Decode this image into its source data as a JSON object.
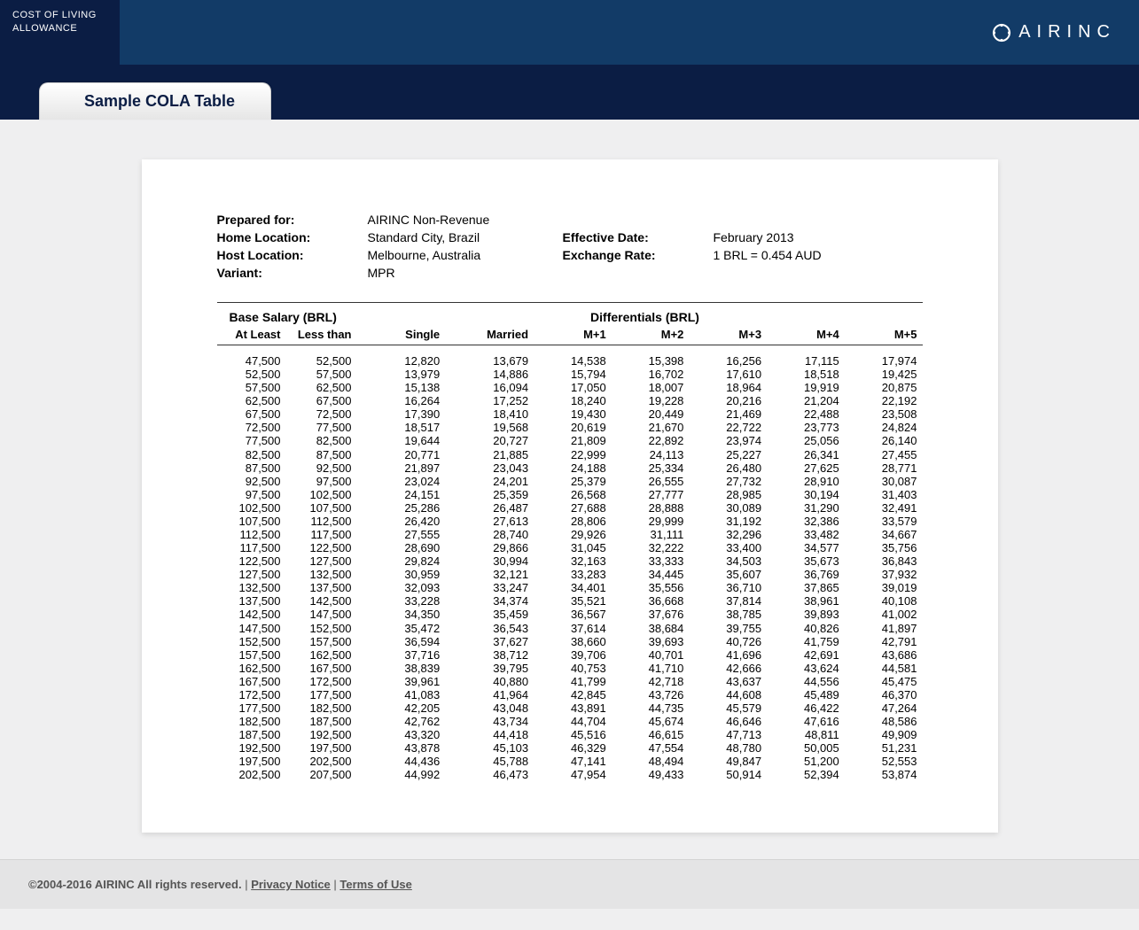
{
  "header": {
    "app_title_line1": "COST OF LIVING",
    "app_title_line2": "ALLOWANCE",
    "brand": "AIRINC"
  },
  "tab": {
    "label": "Sample COLA Table"
  },
  "meta": {
    "prepared_for_label": "Prepared for:",
    "prepared_for_value": "AIRINC Non-Revenue",
    "home_location_label": "Home Location:",
    "home_location_value": "Standard City, Brazil",
    "host_location_label": "Host Location:",
    "host_location_value": "Melbourne, Australia",
    "variant_label": "Variant:",
    "variant_value": "MPR",
    "effective_date_label": "Effective Date:",
    "effective_date_value": "February 2013",
    "exchange_rate_label": "Exchange Rate:",
    "exchange_rate_value": "1 BRL = 0.454 AUD"
  },
  "section_headers": {
    "base_salary": "Base Salary (BRL)",
    "differentials": "Differentials (BRL)"
  },
  "table": {
    "columns": [
      "At Least",
      "Less than",
      "Single",
      "Married",
      "M+1",
      "M+2",
      "M+3",
      "M+4",
      "M+5"
    ],
    "rows": [
      [
        "47,500",
        "52,500",
        "12,820",
        "13,679",
        "14,538",
        "15,398",
        "16,256",
        "17,115",
        "17,974"
      ],
      [
        "52,500",
        "57,500",
        "13,979",
        "14,886",
        "15,794",
        "16,702",
        "17,610",
        "18,518",
        "19,425"
      ],
      [
        "57,500",
        "62,500",
        "15,138",
        "16,094",
        "17,050",
        "18,007",
        "18,964",
        "19,919",
        "20,875"
      ],
      [
        "62,500",
        "67,500",
        "16,264",
        "17,252",
        "18,240",
        "19,228",
        "20,216",
        "21,204",
        "22,192"
      ],
      [
        "67,500",
        "72,500",
        "17,390",
        "18,410",
        "19,430",
        "20,449",
        "21,469",
        "22,488",
        "23,508"
      ],
      [
        "72,500",
        "77,500",
        "18,517",
        "19,568",
        "20,619",
        "21,670",
        "22,722",
        "23,773",
        "24,824"
      ],
      [
        "77,500",
        "82,500",
        "19,644",
        "20,727",
        "21,809",
        "22,892",
        "23,974",
        "25,056",
        "26,140"
      ],
      [
        "82,500",
        "87,500",
        "20,771",
        "21,885",
        "22,999",
        "24,113",
        "25,227",
        "26,341",
        "27,455"
      ],
      [
        "87,500",
        "92,500",
        "21,897",
        "23,043",
        "24,188",
        "25,334",
        "26,480",
        "27,625",
        "28,771"
      ],
      [
        "92,500",
        "97,500",
        "23,024",
        "24,201",
        "25,379",
        "26,555",
        "27,732",
        "28,910",
        "30,087"
      ],
      [
        "97,500",
        "102,500",
        "24,151",
        "25,359",
        "26,568",
        "27,777",
        "28,985",
        "30,194",
        "31,403"
      ],
      [
        "102,500",
        "107,500",
        "25,286",
        "26,487",
        "27,688",
        "28,888",
        "30,089",
        "31,290",
        "32,491"
      ],
      [
        "107,500",
        "112,500",
        "26,420",
        "27,613",
        "28,806",
        "29,999",
        "31,192",
        "32,386",
        "33,579"
      ],
      [
        "112,500",
        "117,500",
        "27,555",
        "28,740",
        "29,926",
        "31,111",
        "32,296",
        "33,482",
        "34,667"
      ],
      [
        "117,500",
        "122,500",
        "28,690",
        "29,866",
        "31,045",
        "32,222",
        "33,400",
        "34,577",
        "35,756"
      ],
      [
        "122,500",
        "127,500",
        "29,824",
        "30,994",
        "32,163",
        "33,333",
        "34,503",
        "35,673",
        "36,843"
      ],
      [
        "127,500",
        "132,500",
        "30,959",
        "32,121",
        "33,283",
        "34,445",
        "35,607",
        "36,769",
        "37,932"
      ],
      [
        "132,500",
        "137,500",
        "32,093",
        "33,247",
        "34,401",
        "35,556",
        "36,710",
        "37,865",
        "39,019"
      ],
      [
        "137,500",
        "142,500",
        "33,228",
        "34,374",
        "35,521",
        "36,668",
        "37,814",
        "38,961",
        "40,108"
      ],
      [
        "142,500",
        "147,500",
        "34,350",
        "35,459",
        "36,567",
        "37,676",
        "38,785",
        "39,893",
        "41,002"
      ],
      [
        "147,500",
        "152,500",
        "35,472",
        "36,543",
        "37,614",
        "38,684",
        "39,755",
        "40,826",
        "41,897"
      ],
      [
        "152,500",
        "157,500",
        "36,594",
        "37,627",
        "38,660",
        "39,693",
        "40,726",
        "41,759",
        "42,791"
      ],
      [
        "157,500",
        "162,500",
        "37,716",
        "38,712",
        "39,706",
        "40,701",
        "41,696",
        "42,691",
        "43,686"
      ],
      [
        "162,500",
        "167,500",
        "38,839",
        "39,795",
        "40,753",
        "41,710",
        "42,666",
        "43,624",
        "44,581"
      ],
      [
        "167,500",
        "172,500",
        "39,961",
        "40,880",
        "41,799",
        "42,718",
        "43,637",
        "44,556",
        "45,475"
      ],
      [
        "172,500",
        "177,500",
        "41,083",
        "41,964",
        "42,845",
        "43,726",
        "44,608",
        "45,489",
        "46,370"
      ],
      [
        "177,500",
        "182,500",
        "42,205",
        "43,048",
        "43,891",
        "44,735",
        "45,579",
        "46,422",
        "47,264"
      ],
      [
        "182,500",
        "187,500",
        "42,762",
        "43,734",
        "44,704",
        "45,674",
        "46,646",
        "47,616",
        "48,586"
      ],
      [
        "187,500",
        "192,500",
        "43,320",
        "44,418",
        "45,516",
        "46,615",
        "47,713",
        "48,811",
        "49,909"
      ],
      [
        "192,500",
        "197,500",
        "43,878",
        "45,103",
        "46,329",
        "47,554",
        "48,780",
        "50,005",
        "51,231"
      ],
      [
        "197,500",
        "202,500",
        "44,436",
        "45,788",
        "47,141",
        "48,494",
        "49,847",
        "51,200",
        "52,553"
      ],
      [
        "202,500",
        "207,500",
        "44,992",
        "46,473",
        "47,954",
        "49,433",
        "50,914",
        "52,394",
        "53,874"
      ]
    ]
  },
  "footer": {
    "copyright": "©2004-2016 AIRINC All rights reserved.",
    "sep": " | ",
    "privacy": "Privacy Notice",
    "terms": "Terms of Use"
  }
}
